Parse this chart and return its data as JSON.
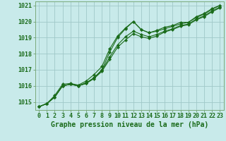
{
  "title": "Graphe pression niveau de la mer (hPa)",
  "hours": [
    0,
    1,
    2,
    3,
    4,
    5,
    6,
    7,
    8,
    9,
    10,
    11,
    12,
    13,
    14,
    15,
    16,
    17,
    18,
    19,
    20,
    21,
    22,
    23
  ],
  "series": [
    [
      1014.7,
      1014.9,
      1015.3,
      1016.0,
      1016.1,
      1016.0,
      1016.2,
      1016.5,
      1017.0,
      1018.1,
      1019.0,
      1019.55,
      1020.0,
      1019.5,
      1019.3,
      1019.4,
      1019.55,
      1019.7,
      1019.85,
      1019.95,
      1020.25,
      1020.45,
      1020.75,
      1021.0
    ],
    [
      1014.7,
      1014.9,
      1015.3,
      1016.0,
      1016.1,
      1016.0,
      1016.15,
      1016.5,
      1016.95,
      1017.8,
      1018.55,
      1019.05,
      1019.4,
      1019.2,
      1019.05,
      1019.2,
      1019.4,
      1019.55,
      1019.75,
      1019.85,
      1020.15,
      1020.35,
      1020.65,
      1020.9
    ],
    [
      1014.7,
      1014.9,
      1015.3,
      1016.0,
      1016.1,
      1016.0,
      1016.15,
      1016.45,
      1016.9,
      1017.65,
      1018.4,
      1018.85,
      1019.25,
      1019.05,
      1018.95,
      1019.1,
      1019.35,
      1019.5,
      1019.7,
      1019.8,
      1020.1,
      1020.3,
      1020.6,
      1020.85
    ],
    [
      1014.7,
      1014.9,
      1015.4,
      1016.1,
      1016.15,
      1016.05,
      1016.3,
      1016.7,
      1017.2,
      1018.3,
      1019.1,
      1019.6,
      1020.0,
      1019.5,
      1019.3,
      1019.45,
      1019.65,
      1019.75,
      1019.95,
      1019.95,
      1020.3,
      1020.5,
      1020.8,
      1021.0
    ]
  ],
  "line_color": "#1a6b1a",
  "marker": "D",
  "marker_size": 2.2,
  "linewidth": 0.8,
  "bg_color": "#c8eaea",
  "grid_color": "#a0c8c8",
  "ylim": [
    1014.5,
    1021.25
  ],
  "yticks": [
    1015,
    1016,
    1017,
    1018,
    1019,
    1020,
    1021
  ],
  "tick_fontsize": 6,
  "label_fontsize": 7,
  "label_fontweight": "bold"
}
